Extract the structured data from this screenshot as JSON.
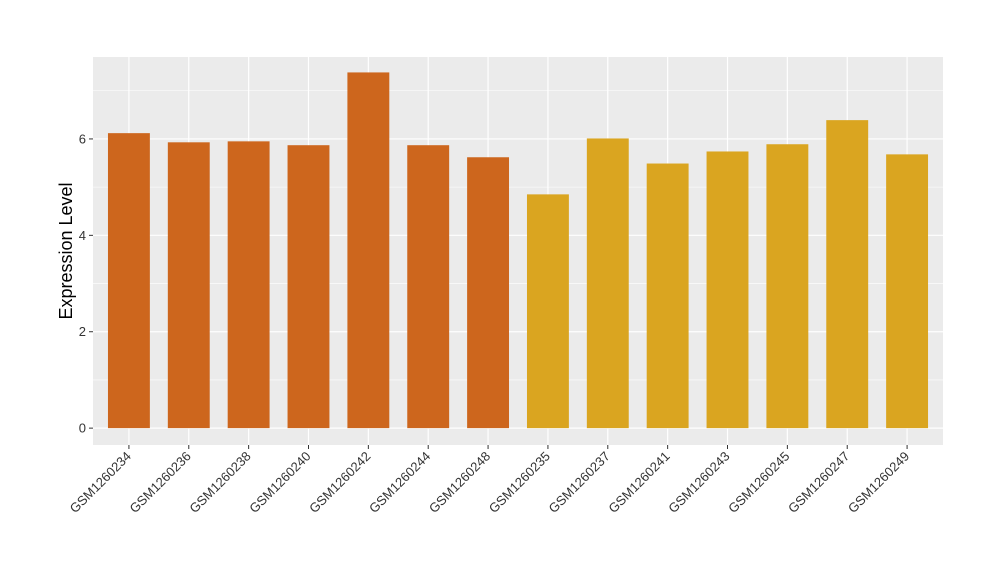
{
  "chart_data": {
    "type": "bar",
    "title": "",
    "xlabel": "",
    "ylabel": "Expression Level",
    "ylim": [
      -0.35,
      7.7
    ],
    "yticks": [
      0,
      2,
      4,
      6
    ],
    "grid": true,
    "legend": "none",
    "categories": [
      "GSM1260234",
      "GSM1260236",
      "GSM1260238",
      "GSM1260240",
      "GSM1260242",
      "GSM1260244",
      "GSM1260248",
      "GSM1260235",
      "GSM1260237",
      "GSM1260241",
      "GSM1260243",
      "GSM1260245",
      "GSM1260247",
      "GSM1260249"
    ],
    "values": [
      6.12,
      5.93,
      5.95,
      5.87,
      7.38,
      5.87,
      5.62,
      4.85,
      6.01,
      5.49,
      5.74,
      5.89,
      6.39,
      5.68
    ],
    "groups": [
      0,
      0,
      0,
      0,
      0,
      0,
      0,
      1,
      1,
      1,
      1,
      1,
      1,
      1
    ],
    "group_colors": [
      "#CD661D",
      "#DAA520"
    ],
    "panel_color": "#EBEBEB",
    "grid_color": "#FFFFFF"
  }
}
